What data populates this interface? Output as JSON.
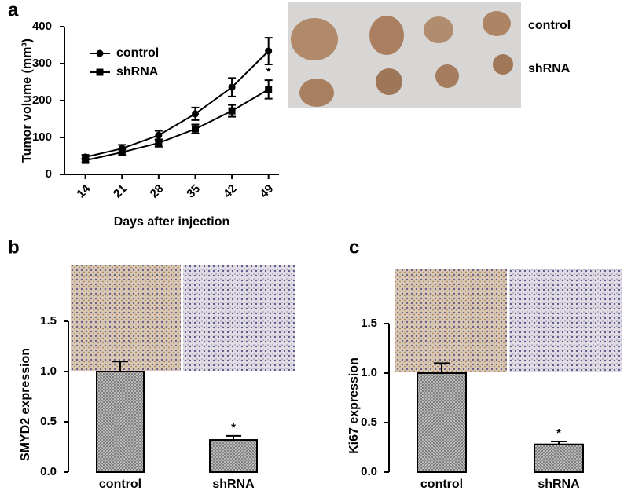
{
  "chart_data": [
    {
      "type": "line",
      "panel": "a",
      "image_labels": [
        "control",
        "shRNA"
      ],
      "xlabel": "Days after injection",
      "ylabel": "Tumor volume (mm³)",
      "x": [
        14,
        21,
        28,
        35,
        42,
        49
      ],
      "xlim": [
        10,
        51
      ],
      "xticks": [
        14,
        21,
        28,
        35,
        42,
        49
      ],
      "ylim": [
        0,
        400
      ],
      "yticks": [
        0,
        100,
        200,
        300,
        400
      ],
      "legend": "upper left",
      "series": [
        {
          "name": "control",
          "color": "#000000",
          "marker": "circle",
          "values": [
            47,
            70,
            106,
            164,
            236,
            334
          ],
          "errors": [
            6,
            10,
            12,
            17,
            25,
            36
          ]
        },
        {
          "name": "shRNA",
          "color": "#000000",
          "marker": "square",
          "values": [
            38,
            60,
            85,
            123,
            172,
            230
          ],
          "errors": [
            5,
            8,
            10,
            12,
            16,
            25
          ]
        }
      ],
      "annotation": "*"
    },
    {
      "type": "bar",
      "panel": "b",
      "ylabel": "SMYD2 expression",
      "categories": [
        "control",
        "shRNA"
      ],
      "values": [
        1.0,
        0.32
      ],
      "errors": [
        0.1,
        0.04
      ],
      "color": "#7a7a7a",
      "ylim": [
        0,
        1.5
      ],
      "yticks": [
        {
          "value": 0,
          "label": "0.0"
        },
        0.5,
        {
          "value": 1,
          "label": "1.0"
        },
        1.5
      ],
      "annotation": "*"
    },
    {
      "type": "bar",
      "panel": "c",
      "ylabel": "Ki67 expression",
      "categories": [
        "control",
        "shRNA"
      ],
      "values": [
        1.0,
        0.28
      ],
      "errors": [
        0.1,
        0.03
      ],
      "color": "#7a7a7a",
      "ylim": [
        0,
        1.5
      ],
      "yticks": [
        {
          "value": 0,
          "label": "0.0"
        },
        0.5,
        {
          "value": 1,
          "label": "1.0"
        },
        1.5
      ],
      "annotation": "*"
    }
  ]
}
